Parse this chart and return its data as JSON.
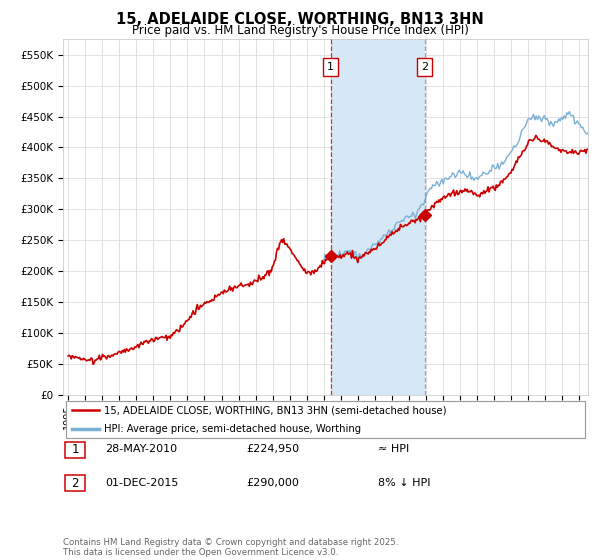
{
  "title_line1": "15, ADELAIDE CLOSE, WORTHING, BN13 3HN",
  "title_line2": "Price paid vs. HM Land Registry's House Price Index (HPI)",
  "ylabel_ticks": [
    "£0",
    "£50K",
    "£100K",
    "£150K",
    "£200K",
    "£250K",
    "£300K",
    "£350K",
    "£400K",
    "£450K",
    "£500K",
    "£550K"
  ],
  "ytick_vals": [
    0,
    50000,
    100000,
    150000,
    200000,
    250000,
    300000,
    350000,
    400000,
    450000,
    500000,
    550000
  ],
  "ylim": [
    0,
    575000
  ],
  "xlim_start": 1994.7,
  "xlim_end": 2025.5,
  "hpi_line_color": "#7ab0d4",
  "hpi_fill_color": "#d6e8f5",
  "price_color": "#cc0000",
  "sale1_x": 2010.41,
  "sale1_y": 224950,
  "sale1_label": "1",
  "sale1_date": "28-MAY-2010",
  "sale1_price": "£224,950",
  "sale1_hpi": "≈ HPI",
  "sale2_x": 2015.92,
  "sale2_y": 290000,
  "sale2_label": "2",
  "sale2_date": "01-DEC-2015",
  "sale2_price": "£290,000",
  "sale2_hpi": "8% ↓ HPI",
  "legend_line1": "15, ADELAIDE CLOSE, WORTHING, BN13 3HN (semi-detached house)",
  "legend_line2": "HPI: Average price, semi-detached house, Worthing",
  "footer": "Contains HM Land Registry data © Crown copyright and database right 2025.\nThis data is licensed under the Open Government Licence v3.0.",
  "background_color": "#ffffff",
  "grid_color": "#dddddd",
  "vline_color": "#cc0000",
  "vline2_color": "#aaaacc"
}
